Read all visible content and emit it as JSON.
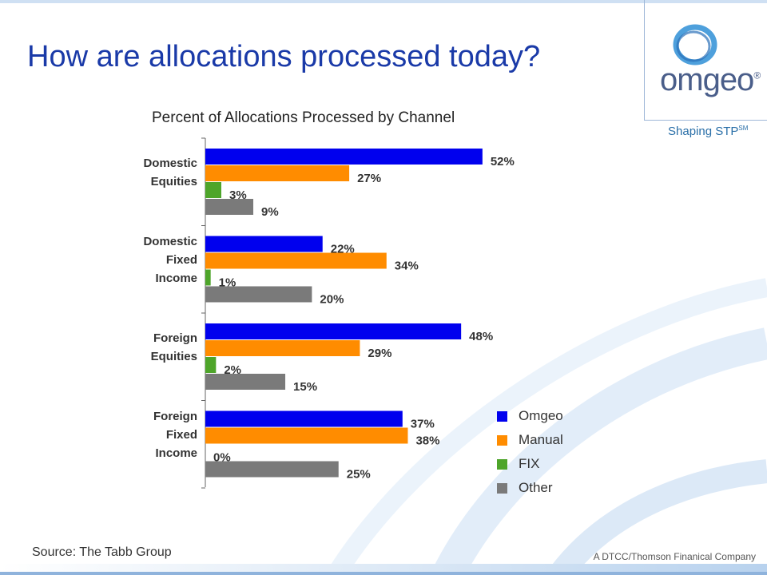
{
  "slide": {
    "title": "How are allocations processed today?",
    "source": "Source: The Tabb Group"
  },
  "brand": {
    "logo_text": "omgeo",
    "logo_reg": "®",
    "tagline": "Shaping STP",
    "tagline_mark": "SM",
    "company": "A DTCC/Thomson Finanical Company",
    "logo_icon": "omgeo-ring-icon"
  },
  "colors": {
    "title": "#1a3aa8",
    "omgeo": "#0000ee",
    "manual": "#ff8c00",
    "fix": "#4ea52a",
    "other": "#7a7a7a"
  },
  "chart_data": {
    "type": "bar",
    "orientation": "horizontal",
    "title": "Percent of Allocations Processed by Channel",
    "categories": [
      "Domestic\nEquities",
      "Domestic\nFixed\nIncome",
      "Foreign\nEquities",
      "Foreign\nFixed\nIncome"
    ],
    "series": [
      {
        "name": "Omgeo",
        "color": "#0000ee",
        "values": [
          52,
          22,
          48,
          37
        ]
      },
      {
        "name": "Manual",
        "color": "#ff8c00",
        "values": [
          27,
          34,
          29,
          38
        ]
      },
      {
        "name": "FIX",
        "color": "#4ea52a",
        "values": [
          3,
          1,
          2,
          0
        ]
      },
      {
        "name": "Other",
        "color": "#7a7a7a",
        "values": [
          9,
          20,
          15,
          25
        ]
      }
    ],
    "value_suffix": "%",
    "xlim": [
      0,
      60
    ],
    "grid": false,
    "legend": "bottom-right"
  }
}
